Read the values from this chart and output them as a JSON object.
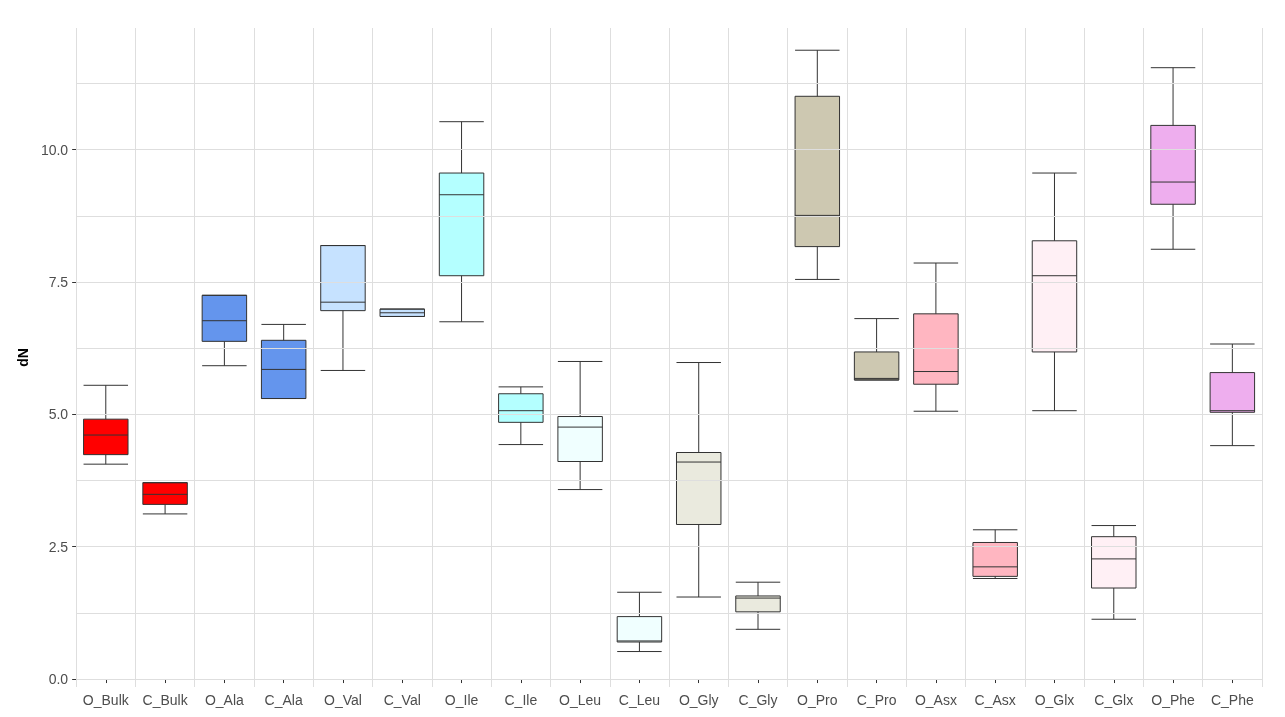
{
  "chart_data": {
    "type": "box",
    "ylabel": "dN",
    "grid": true,
    "categories": [
      "O_Bulk",
      "C_Bulk",
      "O_Ala",
      "C_Ala",
      "O_Val",
      "C_Val",
      "O_Ile",
      "C_Ile",
      "O_Leu",
      "C_Leu",
      "O_Gly",
      "C_Gly",
      "O_Pro",
      "C_Pro",
      "O_Asx",
      "C_Asx",
      "O_Glx",
      "C_Glx",
      "O_Phe",
      "C_Phe"
    ],
    "colors": [
      "#ff0000",
      "#ff0000",
      "#6495ed",
      "#6495ed",
      "#c6e2ff",
      "#c6e2ff",
      "#b4ffff",
      "#b4ffff",
      "#f0ffff",
      "#f0ffff",
      "#eaeade",
      "#eaeade",
      "#cdc8b1",
      "#cdc8b1",
      "#ffb6c1",
      "#ffb6c1",
      "#fff0f5",
      "#fff0f5",
      "#eeaeee",
      "#eeaeee"
    ],
    "boxes": [
      {
        "low": 4.06,
        "q1": 4.24,
        "median": 4.61,
        "q3": 4.91,
        "high": 5.55
      },
      {
        "low": 3.12,
        "q1": 3.3,
        "median": 3.49,
        "q3": 3.71,
        "high": 3.71
      },
      {
        "low": 5.92,
        "q1": 6.38,
        "median": 6.77,
        "q3": 7.25,
        "high": 7.25
      },
      {
        "low": 5.3,
        "q1": 5.3,
        "median": 5.85,
        "q3": 6.4,
        "high": 6.7
      },
      {
        "low": 5.83,
        "q1": 6.96,
        "median": 7.12,
        "q3": 8.19,
        "high": 8.19
      },
      {
        "low": 6.85,
        "q1": 6.85,
        "median": 6.92,
        "q3": 6.99,
        "high": 6.99
      },
      {
        "low": 6.75,
        "q1": 7.62,
        "median": 9.15,
        "q3": 9.56,
        "high": 10.53
      },
      {
        "low": 4.43,
        "q1": 4.85,
        "median": 5.07,
        "q3": 5.39,
        "high": 5.52
      },
      {
        "low": 3.58,
        "q1": 4.11,
        "median": 4.76,
        "q3": 4.96,
        "high": 6.0
      },
      {
        "low": 0.52,
        "q1": 0.7,
        "median": 0.72,
        "q3": 1.18,
        "high": 1.64
      },
      {
        "low": 1.55,
        "q1": 2.92,
        "median": 4.1,
        "q3": 4.28,
        "high": 5.98
      },
      {
        "low": 0.94,
        "q1": 1.27,
        "median": 1.53,
        "q3": 1.57,
        "high": 1.83
      },
      {
        "low": 7.55,
        "q1": 8.17,
        "median": 8.76,
        "q3": 11.01,
        "high": 11.88
      },
      {
        "low": 5.65,
        "q1": 5.65,
        "median": 5.68,
        "q3": 6.18,
        "high": 6.81
      },
      {
        "low": 5.06,
        "q1": 5.57,
        "median": 5.81,
        "q3": 6.9,
        "high": 7.86
      },
      {
        "low": 1.9,
        "q1": 1.94,
        "median": 2.12,
        "q3": 2.58,
        "high": 2.82
      },
      {
        "low": 5.07,
        "q1": 6.18,
        "median": 7.62,
        "q3": 8.28,
        "high": 9.56
      },
      {
        "low": 1.13,
        "q1": 1.72,
        "median": 2.27,
        "q3": 2.69,
        "high": 2.9
      },
      {
        "low": 8.12,
        "q1": 8.97,
        "median": 9.39,
        "q3": 10.46,
        "high": 11.55
      },
      {
        "low": 4.41,
        "q1": 5.04,
        "median": 5.07,
        "q3": 5.79,
        "high": 6.33
      }
    ],
    "ylim": [
      -0.15,
      12.3
    ],
    "yticks": [
      {
        "value": 0,
        "label": "0.0"
      },
      {
        "value": 1.25,
        "label": null
      },
      {
        "value": 2.5,
        "label": "2.5"
      },
      {
        "value": 3.75,
        "label": null
      },
      {
        "value": 5,
        "label": "5.0"
      },
      {
        "value": 6.25,
        "label": null
      },
      {
        "value": 7.5,
        "label": "7.5"
      },
      {
        "value": 8.75,
        "label": null
      },
      {
        "value": 10,
        "label": "10.0"
      },
      {
        "value": 11.25,
        "label": null
      }
    ]
  }
}
